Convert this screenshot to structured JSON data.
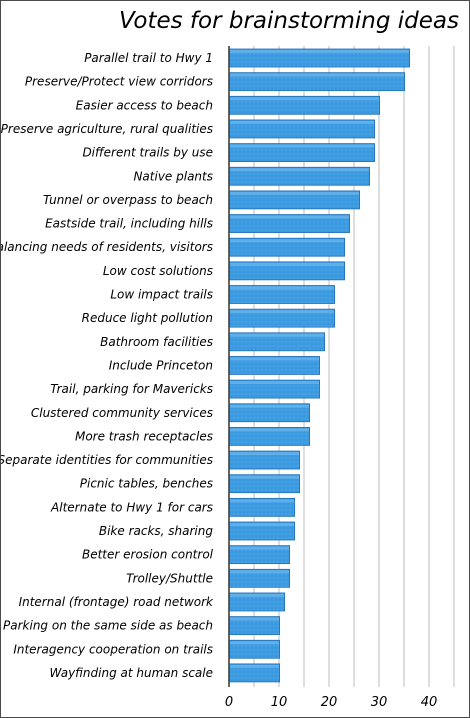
{
  "chart_data": {
    "type": "bar",
    "orientation": "horizontal",
    "title": "Votes for brainstorming ideas",
    "categories": [
      "Parallel trail to Hwy 1",
      "Preserve/Protect view corridors",
      "Easier access to beach",
      "Preserve agriculture, rural qualities",
      "Different trails by use",
      "Native plants",
      "Tunnel or overpass to beach",
      "Eastside trail, including hills",
      "Balancing needs of residents, visitors",
      "Low cost solutions",
      "Low impact trails",
      "Reduce light pollution",
      "Bathroom facilities",
      "Include Princeton",
      "Trail, parking for Mavericks",
      "Clustered community services",
      "More trash receptacles",
      "Separate identities for communities",
      "Picnic tables, benches",
      "Alternate to Hwy 1 for cars",
      "Bike racks, sharing",
      "Better erosion control",
      "Trolley/Shuttle",
      "Internal (frontage) road network",
      "Parking on the same side as beach",
      "Interagency cooperation on trails",
      "Wayfinding at human scale"
    ],
    "values": [
      36,
      35,
      30,
      29,
      29,
      28,
      26,
      24,
      23,
      23,
      21,
      21,
      19,
      18,
      18,
      16,
      16,
      14,
      14,
      13,
      13,
      12,
      12,
      11,
      10,
      10,
      10
    ],
    "xlim": [
      0,
      45
    ],
    "xticks": [
      0,
      10,
      20,
      30,
      40
    ],
    "grid": true,
    "colors": {
      "bar_fill": "#3d9be2",
      "bar_highlight": "#74bdf0",
      "bar_edge": "#1f6fb5",
      "grid": "#bdbdbd",
      "axis": "#000000"
    }
  }
}
